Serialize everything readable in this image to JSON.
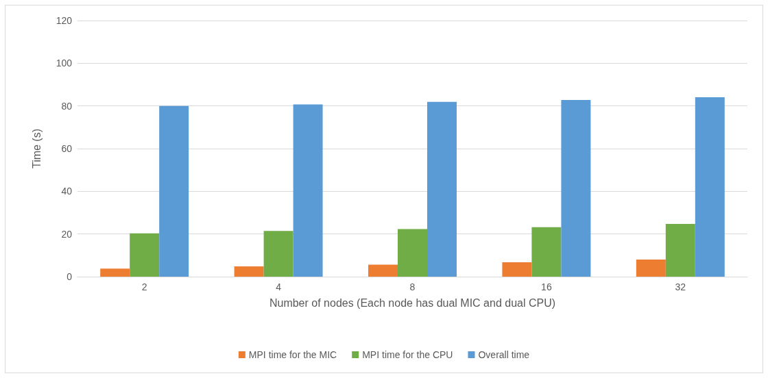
{
  "chart_data": {
    "type": "bar",
    "xlabel": "Number of nodes (Each node has dual MIC and dual CPU)",
    "ylabel": "Time (s)",
    "categories": [
      "2",
      "4",
      "8",
      "16",
      "32"
    ],
    "series": [
      {
        "name": "MPI time for the MIC",
        "color": "#ed7d31",
        "values": [
          3.8,
          4.8,
          5.6,
          6.7,
          8.0
        ]
      },
      {
        "name": "MPI time for the CPU",
        "color": "#70ad47",
        "values": [
          20.3,
          21.4,
          22.3,
          23.2,
          24.7
        ]
      },
      {
        "name": "Overall time",
        "color": "#5b9bd5",
        "values": [
          80.0,
          80.7,
          81.9,
          82.8,
          84.1
        ]
      }
    ],
    "ylim": [
      0,
      120
    ],
    "yticks": [
      0,
      20,
      40,
      60,
      80,
      100,
      120
    ],
    "grid": "y",
    "legend": "bottom"
  }
}
